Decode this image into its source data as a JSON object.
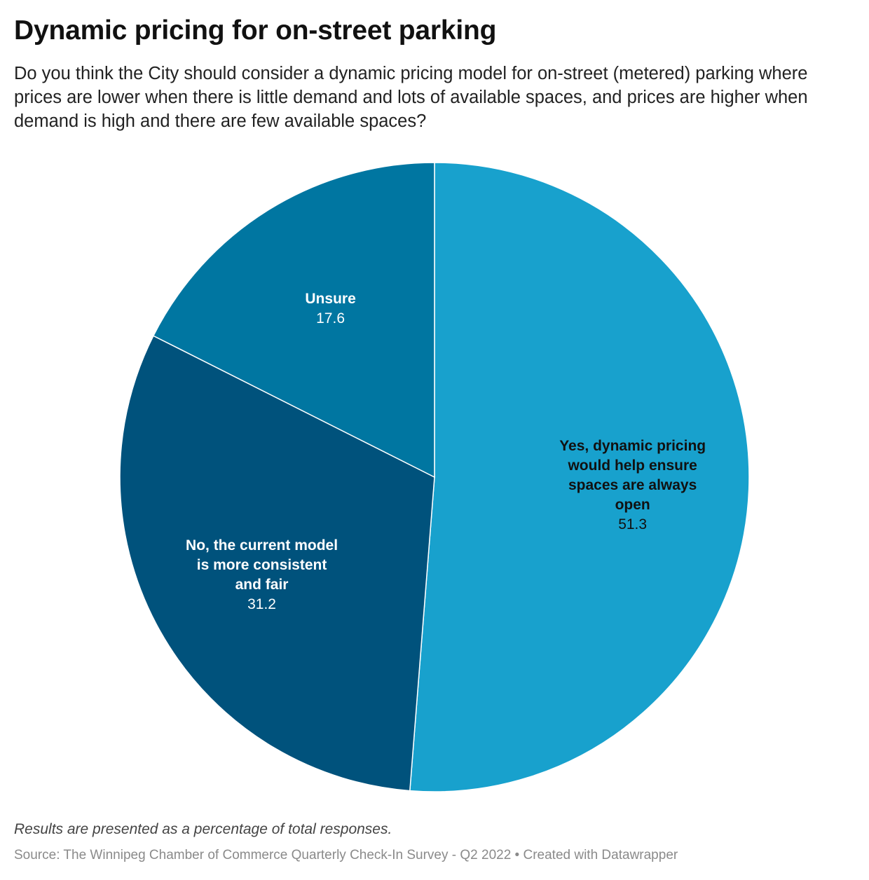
{
  "header": {
    "title": "Dynamic pricing for on-street parking",
    "subtitle": "Do you think the City should consider a dynamic pricing model for on-street (metered) parking where prices are lower when there is little demand and lots of available spaces, and prices are higher when demand is high and there are few available spaces?"
  },
  "chart_data": {
    "type": "pie",
    "title": "Dynamic pricing for on-street parking",
    "slices": [
      {
        "label": "Yes, dynamic pricing would help ensure spaces are always open",
        "label_lines": [
          "Yes, dynamic pricing",
          "would help ensure",
          "spaces are always",
          "open"
        ],
        "value": 51.3,
        "value_text": "51.3",
        "color": "#18a1cd",
        "label_color": "#111111"
      },
      {
        "label": "No, the current model is more consistent and fair",
        "label_lines": [
          "No, the current model",
          "is more consistent",
          "and fair"
        ],
        "value": 31.2,
        "value_text": "31.2",
        "color": "#00527c",
        "label_color": "#ffffff"
      },
      {
        "label": "Unsure",
        "label_lines": [
          "Unsure"
        ],
        "value": 17.6,
        "value_text": "17.6",
        "color": "#0076a1",
        "label_color": "#ffffff"
      }
    ]
  },
  "footer": {
    "note": "Results are presented as a percentage of total responses.",
    "source": "Source: The Winnipeg Chamber of Commerce Quarterly Check-In Survey - Q2 2022 • Created with Datawrapper"
  }
}
